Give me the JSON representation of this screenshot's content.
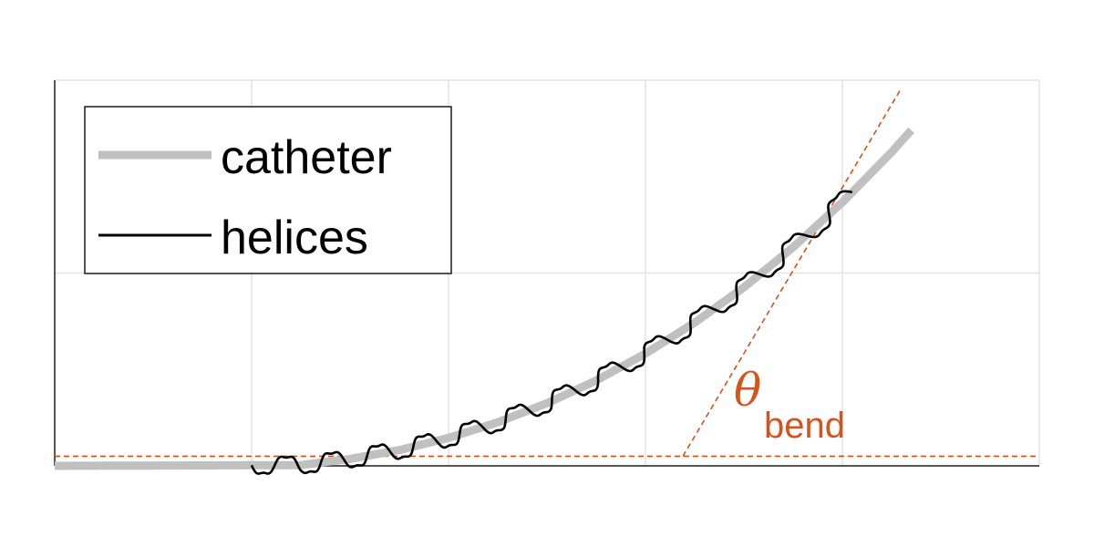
{
  "chart_data": {
    "type": "line",
    "title": "",
    "xlabel": "",
    "ylabel": "",
    "xlim": [
      0,
      10
    ],
    "ylim": [
      0,
      2
    ],
    "grid": true,
    "x_gridlines": [
      0,
      2,
      4,
      6,
      8,
      10
    ],
    "y_gridlines": [
      0,
      1,
      2
    ],
    "legend": {
      "placement": "top-left"
    },
    "series": [
      {
        "name": "catheter",
        "style": "thick-gray",
        "color": "#c0c0c0",
        "x": [
          0,
          2.5,
          3,
          3.5,
          4,
          4.5,
          5,
          5.5,
          6,
          6.5,
          7,
          7.5,
          8,
          8.5,
          8.7
        ],
        "y": [
          0,
          0.004,
          0.036,
          0.082,
          0.145,
          0.226,
          0.325,
          0.443,
          0.582,
          0.743,
          0.926,
          1.134,
          1.367,
          1.627,
          1.741
        ]
      },
      {
        "name": "helices",
        "style": "thin-black-wavy",
        "color": "#000000",
        "x_start": 2.0,
        "x_end": 8.1,
        "oscillation_periods": 13,
        "oscillation_amplitude": 0.05
      }
    ],
    "annotations": [
      {
        "kind": "reference-line",
        "style": "dashed",
        "color": "#d95219",
        "x": [
          0,
          10
        ],
        "y": [
          0.05,
          0.05
        ]
      },
      {
        "kind": "tangent-line",
        "style": "dashed",
        "color": "#d95219",
        "x": [
          6.38,
          8.6
        ],
        "y": [
          0.05,
          1.96
        ]
      },
      {
        "kind": "angle-label",
        "color": "#d95219",
        "symbol": "θ",
        "subscript": "bend",
        "x": 6.9,
        "y": 0.3
      }
    ]
  }
}
